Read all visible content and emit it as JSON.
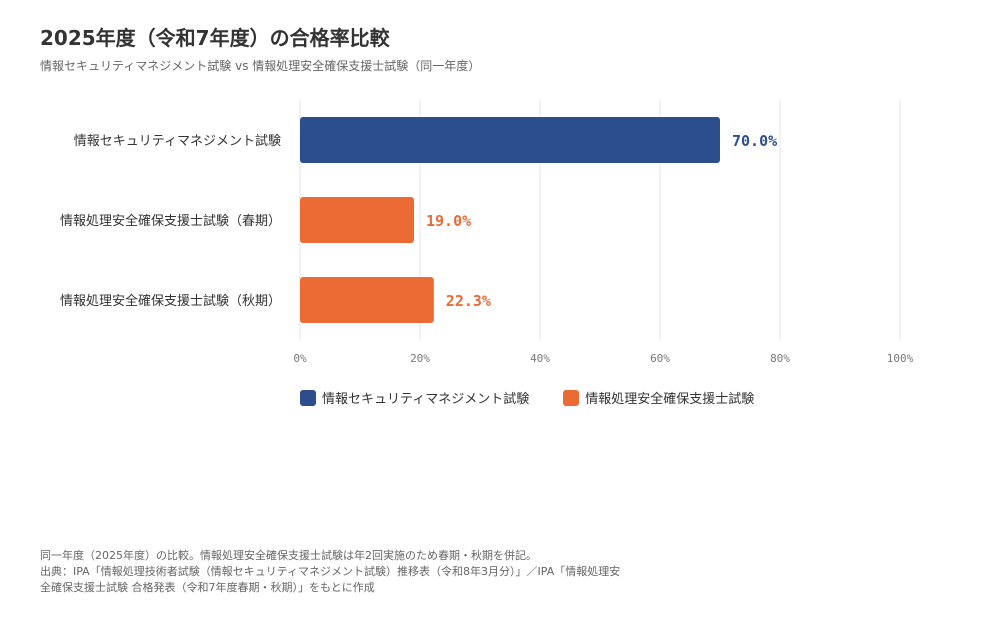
{
  "title": "2025年度（令和7年度）の合格率比較",
  "subtitle": "情報セキュリティマネジメント試験 vs 情報処理安全確保支援士試験（同一年度）",
  "legend": [
    {
      "label": "情報セキュリティマネジメント試験",
      "color": "#2d4e8d"
    },
    {
      "label": "情報処理安全確保支援士試験",
      "color": "#ec6b35"
    }
  ],
  "footer": {
    "line1": "同一年度（2025年度）の比較。情報処理安全確保支援士試験は年2回実施のため春期・秋期を併記。",
    "line2": "出典：IPA「情報処理技術者試験（情報セキュリティマネジメント試験）推移表（令和8年3月分）」／IPA「情報処理安",
    "line3": "全確保支援士試験 合格発表（令和7年度春期・秋期）」をもとに作成"
  },
  "chart_data": {
    "type": "bar",
    "orientation": "horizontal",
    "categories": [
      "情報セキュリティマネジメント試験",
      "情報処理安全確保支援士試験（春期）",
      "情報処理安全確保支援士試験（秋期）"
    ],
    "values": [
      70.0,
      19.0,
      22.3
    ],
    "value_labels": [
      "70.0%",
      "19.0%",
      "22.3%"
    ],
    "bar_colors": [
      "#2d4e8d",
      "#ec6b35",
      "#ec6b35"
    ],
    "xlim": [
      0,
      100
    ],
    "xticks": [
      0,
      20,
      40,
      60,
      80,
      100
    ],
    "xtick_labels": [
      "0%",
      "20%",
      "40%",
      "60%",
      "80%",
      "100%"
    ],
    "grid": "vertical",
    "legend_position": "bottom"
  }
}
